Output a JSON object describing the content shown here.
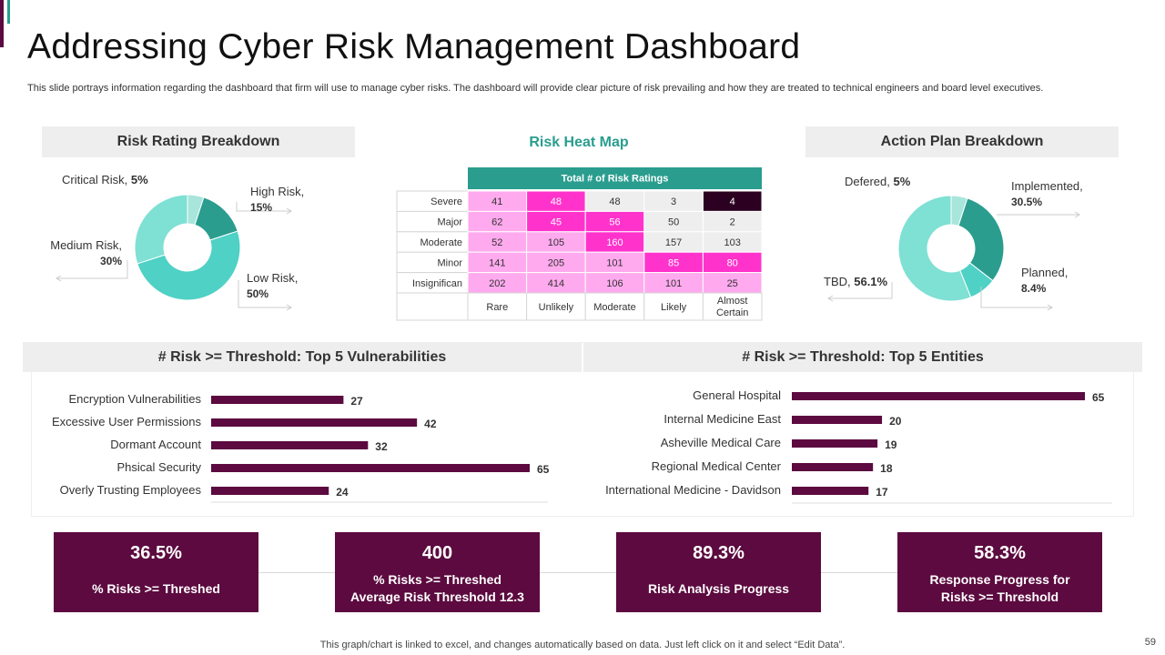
{
  "title": "Addressing Cyber Risk Management Dashboard",
  "subtitle": "This slide portrays information regarding the dashboard that firm will use to manage cyber risks. The dashboard will provide clear picture of risk prevailing and how they are treated to technical engineers and board level executives.",
  "footer": "This graph/chart is linked to excel, and changes automatically based on data. Just left click on it and select “Edit Data”.",
  "page_number": "59",
  "panels": {
    "risk_rating": "Risk  Rating Breakdown",
    "heat_map": "Risk Heat Map",
    "action_plan": "Action Plan Breakdown",
    "vulnerabilities": "# Risk  >= Threshold: Top 5 Vulnerabilities",
    "entities": "# Risk  >= Threshold: Top 5 Entities"
  },
  "kpis": [
    {
      "value": "36.5%",
      "label": "% Risks >= Threshed"
    },
    {
      "value": "400",
      "label": "% Risks >= Threshed\nAverage Risk Threshold 12.3"
    },
    {
      "value": "89.3%",
      "label": "Risk Analysis  Progress"
    },
    {
      "value": "58.3%",
      "label": "Response Progress for\nRisks >= Threshold"
    }
  ],
  "colors": {
    "brand": "#5c0a3f",
    "teal": "#2a9d8f",
    "heat_high": "#ff33cc",
    "heat_low": "#ffaaee"
  },
  "chart_data": [
    {
      "type": "pie",
      "title": "Risk  Rating Breakdown",
      "labels": [
        "Critical Risk",
        "High Risk",
        "Low Risk",
        "Medium Risk"
      ],
      "values": [
        5,
        15,
        50,
        30
      ],
      "value_labels": [
        "5%",
        "15%",
        "50%",
        "30%"
      ],
      "colors": [
        "#a8e6dc",
        "#2a9d8f",
        "#4fd1c5",
        "#7fe0d4"
      ]
    },
    {
      "type": "heatmap",
      "title": "Risk Heat Map",
      "header": "Total # of Risk Ratings",
      "rows": [
        "Severe",
        "Major",
        "Moderate",
        "Minor",
        "Insignifican"
      ],
      "columns": [
        "Rare",
        "Unlikely",
        "Moderate",
        "Likely",
        "Almost Certain"
      ],
      "values": [
        [
          41,
          48,
          48,
          3,
          4
        ],
        [
          62,
          45,
          56,
          50,
          2
        ],
        [
          52,
          105,
          160,
          157,
          103
        ],
        [
          141,
          205,
          101,
          85,
          80
        ],
        [
          202,
          414,
          106,
          101,
          25
        ]
      ],
      "cell_colors": [
        [
          "#ffaaee",
          "#ff33cc",
          "#eeeeee",
          "#eeeeee",
          "#2b0020"
        ],
        [
          "#ffaaee",
          "#ff33cc",
          "#ff33cc",
          "#eeeeee",
          "#eeeeee"
        ],
        [
          "#ffaaee",
          "#ffaaee",
          "#ff33cc",
          "#eeeeee",
          "#eeeeee"
        ],
        [
          "#ffaaee",
          "#ffaaee",
          "#ffaaee",
          "#ff33cc",
          "#ff33cc"
        ],
        [
          "#ffaaee",
          "#ffaaee",
          "#ffaaee",
          "#ffaaee",
          "#ffaaee"
        ]
      ]
    },
    {
      "type": "pie",
      "title": "Action Plan Breakdown",
      "labels": [
        "Defered",
        "Implemented",
        "Planned",
        "TBD"
      ],
      "values": [
        5,
        30.5,
        8.4,
        56.1
      ],
      "value_labels": [
        "5%",
        "30.5%",
        "8.4%",
        "56.1%"
      ],
      "colors": [
        "#a8e6dc",
        "#2a9d8f",
        "#4fd1c5",
        "#7fe0d4"
      ]
    },
    {
      "type": "bar",
      "orientation": "horizontal",
      "title": "# Risk  >= Threshold: Top 5 Vulnerabilities",
      "categories": [
        "Encryption Vulnerabilities",
        "Excessive User Permissions",
        "Dormant Account",
        "Phsical Security",
        "Overly Trusting Employees"
      ],
      "values": [
        27,
        42,
        32,
        65,
        24
      ],
      "xlim": [
        0,
        65
      ],
      "color": "#5c0a3f"
    },
    {
      "type": "bar",
      "orientation": "horizontal",
      "title": "# Risk  >= Threshold: Top 5 Entities",
      "categories": [
        "General Hospital",
        "Internal Medicine East",
        "Asheville Medical Care",
        "Regional Medical Center",
        "International Medicine - Davidson"
      ],
      "values": [
        65,
        20,
        19,
        18,
        17
      ],
      "xlim": [
        0,
        65
      ],
      "color": "#5c0a3f"
    }
  ]
}
